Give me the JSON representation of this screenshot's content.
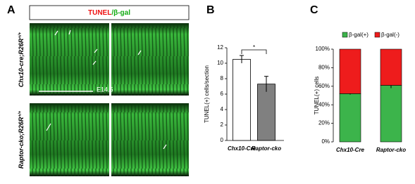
{
  "figure": {
    "panel_label": "A",
    "header": {
      "part1": "TUNEL",
      "part2": "/β-gal"
    },
    "row_labels": [
      {
        "text": "Chx10-cre;R26R",
        "sup": "+/+"
      },
      {
        "text": "Raptor-cko;R26R",
        "sup": "+/+"
      }
    ],
    "scale_label": "E14.5"
  },
  "chart_data": [
    {
      "type": "bar",
      "panel_label": "B",
      "y_label": "TUNEL(+) cells/section",
      "categories": [
        "Chx10-Cre",
        "Raptor-cko"
      ],
      "values": [
        10.5,
        7.3
      ],
      "errors": [
        0.5,
        1.0
      ],
      "colors": [
        "#ffffff",
        "#808080"
      ],
      "ylim": [
        0,
        12
      ],
      "yticks": [
        0,
        2,
        4,
        6,
        8,
        10,
        12
      ],
      "significance": "*"
    },
    {
      "type": "stacked_bar",
      "panel_label": "C",
      "y_label": "TUNEL(+) cells",
      "categories": [
        "Chx10-Cre",
        "Raptor-cko"
      ],
      "series": [
        {
          "name": "β-gal(+)",
          "color": "#3cb44b",
          "values": [
            52,
            61
          ],
          "errors": [
            1,
            3
          ]
        },
        {
          "name": "β-gal(-)",
          "color": "#ee1c1c",
          "values": [
            48,
            39
          ]
        }
      ],
      "ylim": [
        0,
        100
      ],
      "yticks": [
        {
          "value": 0,
          "label": "0%"
        },
        {
          "value": 20,
          "label": "20%"
        },
        {
          "value": 40,
          "label": "40%"
        },
        {
          "value": 60,
          "label": "60%"
        },
        {
          "value": 80,
          "label": "80%"
        },
        {
          "value": 100,
          "label": "100%"
        }
      ]
    }
  ]
}
